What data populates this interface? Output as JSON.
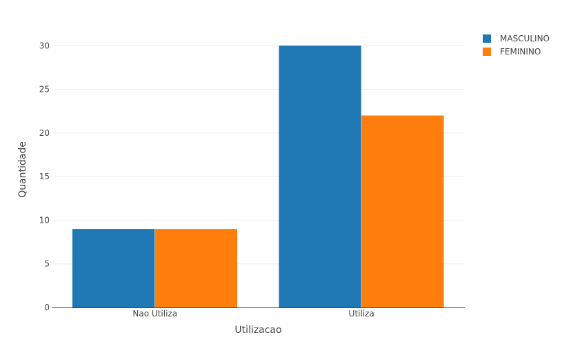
{
  "chart_data": {
    "type": "bar",
    "title": "",
    "xlabel": "Utilizacao",
    "ylabel": "Quantidade",
    "categories": [
      "Nao Utiliza",
      "Utiliza"
    ],
    "series": [
      {
        "name": "MASCULINO",
        "color": "#1f77b4",
        "values": [
          9,
          30
        ]
      },
      {
        "name": "FEMININO",
        "color": "#ff7f0e",
        "values": [
          9,
          22
        ]
      }
    ],
    "ylim": [
      0,
      31.6
    ],
    "yticks": [
      0,
      5,
      10,
      15,
      20,
      25,
      30
    ],
    "grid": true,
    "legend_position": "top-right"
  }
}
